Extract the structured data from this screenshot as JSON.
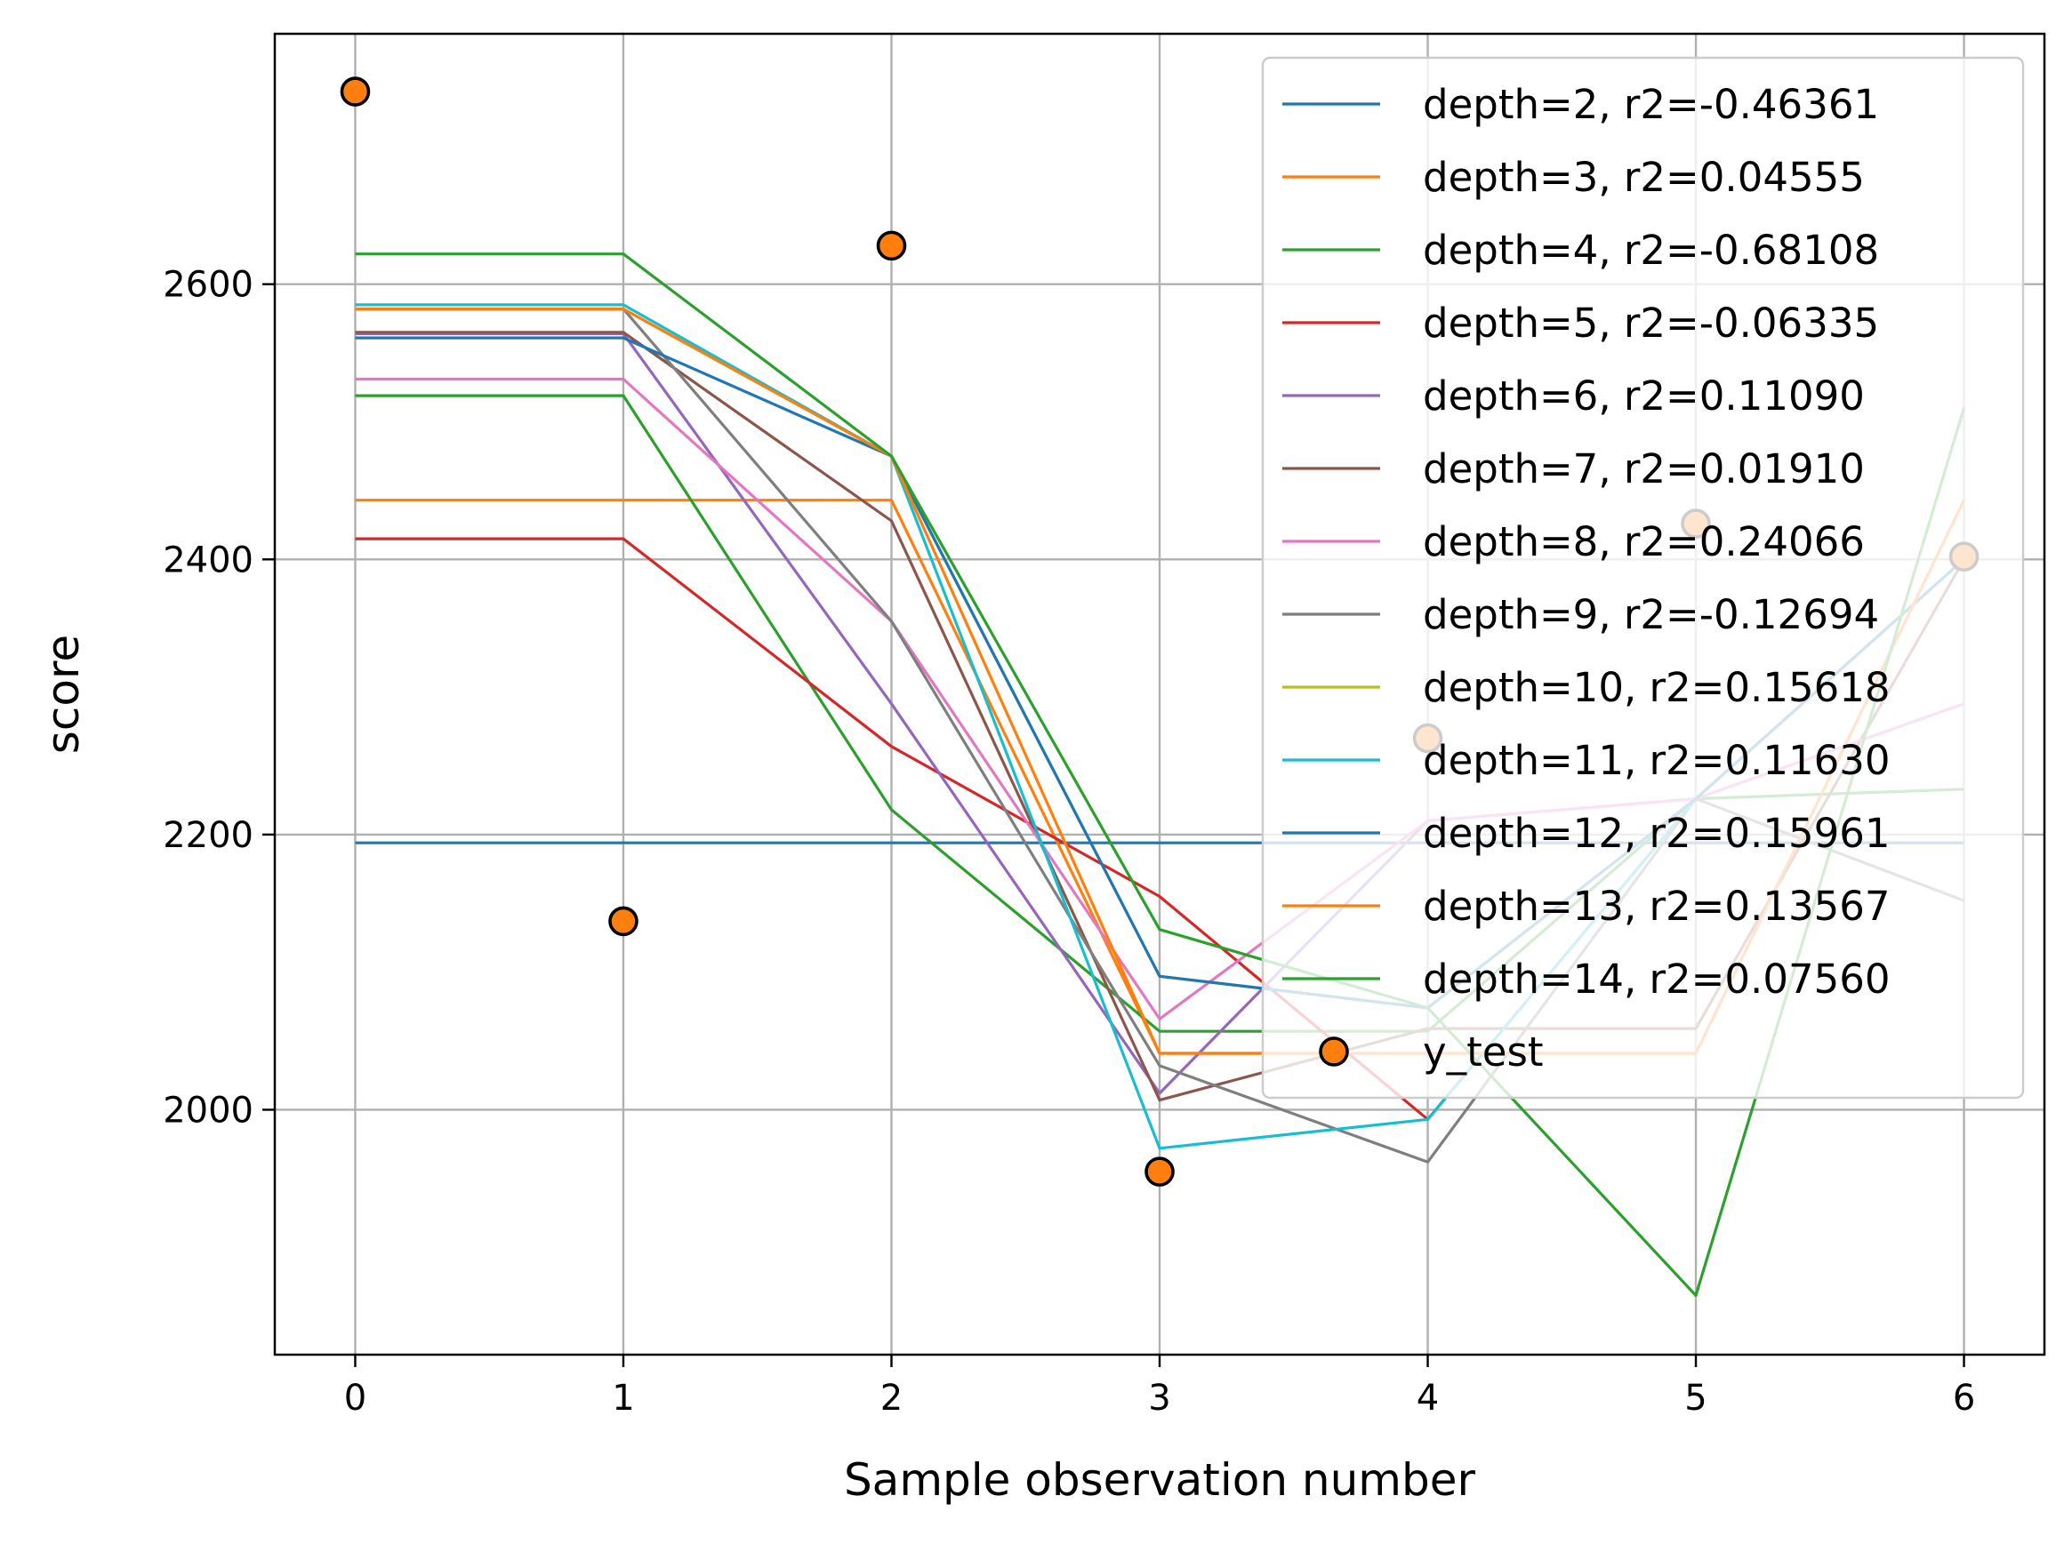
{
  "chart_data": {
    "type": "line",
    "title": "",
    "xlabel": "Sample observation number",
    "ylabel": "score",
    "x": [
      0,
      1,
      2,
      3,
      4,
      5,
      6
    ],
    "xlim": [
      -0.3,
      6.3
    ],
    "ylim": [
      1822,
      2782
    ],
    "xticks": [
      "0",
      "1",
      "2",
      "3",
      "4",
      "5",
      "6"
    ],
    "yticks": [
      2000,
      2200,
      2400,
      2600
    ],
    "ytick_labels": [
      "2000",
      "2200",
      "2400",
      "2600"
    ],
    "grid": true,
    "legend_position": "top-right",
    "series": [
      {
        "name": "depth=2, r2=-0.46361",
        "color": "#1f77b4",
        "values": [
          2194,
          2194,
          2194,
          2194,
          2194,
          2194,
          2194
        ]
      },
      {
        "name": "depth=3, r2=0.04555",
        "color": "#ff7f0e",
        "values": [
          2443,
          2443,
          2443,
          2041,
          2041,
          2041,
          2443
        ]
      },
      {
        "name": "depth=4, r2=-0.68108",
        "color": "#2ca02c",
        "values": [
          2519,
          2519,
          2218,
          2057,
          2057,
          2226,
          2233
        ]
      },
      {
        "name": "depth=5, r2=-0.06335",
        "color": "#d62728",
        "values": [
          2415,
          2415,
          2264,
          2155,
          1993,
          2226,
          2400
        ]
      },
      {
        "name": "depth=6, r2=0.11090",
        "color": "#9467bd",
        "values": [
          2564,
          2564,
          2295,
          2012,
          2210,
          2226,
          2295
        ]
      },
      {
        "name": "depth=7, r2=0.01910",
        "color": "#8c564b",
        "values": [
          2565,
          2565,
          2428,
          2007,
          2059,
          2059,
          2400
        ]
      },
      {
        "name": "depth=8, r2=0.24066",
        "color": "#e377c2",
        "values": [
          2531,
          2531,
          2355,
          2066,
          2210,
          2226,
          2295
        ]
      },
      {
        "name": "depth=9, r2=-0.12694",
        "color": "#7f7f7f",
        "values": [
          2582,
          2582,
          2355,
          2032,
          1962,
          2226,
          2152
        ]
      },
      {
        "name": "depth=10, r2=0.15618",
        "color": "#bcbd22",
        "values": [
          2582,
          2582,
          2475,
          2097,
          2074,
          2226,
          2400
        ]
      },
      {
        "name": "depth=11, r2=0.11630",
        "color": "#17becf",
        "values": [
          2585,
          2585,
          2475,
          1972,
          1993,
          2226,
          2400
        ]
      },
      {
        "name": "depth=12, r2=0.15961",
        "color": "#1f77b4",
        "values": [
          2561,
          2561,
          2475,
          2097,
          2074,
          2226,
          2400
        ]
      },
      {
        "name": "depth=13, r2=0.13567",
        "color": "#ff7f0e",
        "values": [
          2582,
          2582,
          2475,
          2041,
          2041,
          2041,
          2443
        ]
      },
      {
        "name": "depth=14, r2=0.07560",
        "color": "#2ca02c",
        "values": [
          2622,
          2622,
          2475,
          2131,
          2074,
          1865,
          2510
        ]
      }
    ],
    "scatter": {
      "name": "y_test",
      "face_color": "#ff7f0e",
      "edge_color": "#000000",
      "values": [
        2740,
        2137,
        2628,
        1955,
        2270,
        2426,
        2402
      ]
    }
  }
}
